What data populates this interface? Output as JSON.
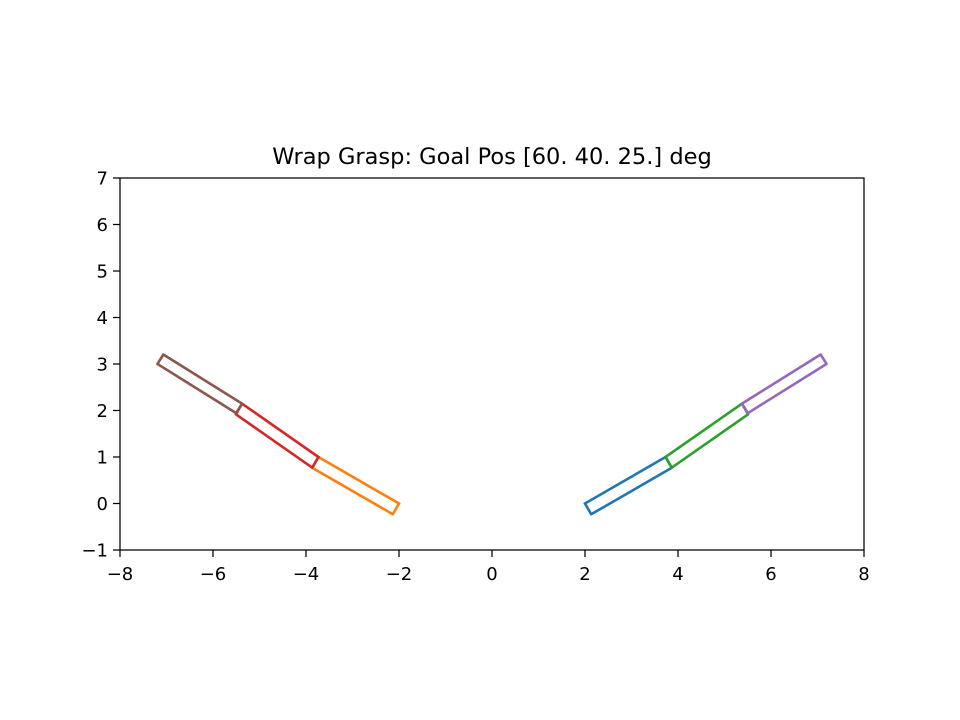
{
  "chart_data": {
    "type": "line",
    "title": "Wrap Grasp: Goal Pos [60. 40. 25.] deg",
    "xlabel": "",
    "ylabel": "",
    "xlim": [
      -8,
      8
    ],
    "ylim": [
      -1,
      7
    ],
    "xticks": [
      -8,
      -6,
      -4,
      -2,
      0,
      2,
      4,
      6,
      8
    ],
    "xtick_labels": [
      "−8",
      "−6",
      "−4",
      "−2",
      "0",
      "2",
      "4",
      "6",
      "8"
    ],
    "yticks": [
      -1,
      0,
      1,
      2,
      3,
      4,
      5,
      6,
      7
    ],
    "ytick_labels": [
      "−1",
      "0",
      "1",
      "2",
      "3",
      "4",
      "5",
      "6",
      "7"
    ],
    "grid": false,
    "series": [
      {
        "color": "#1f77b4",
        "x": [
          2.0,
          3.733,
          3.867,
          2.133,
          2.0
        ],
        "y": [
          0.0,
          1.0,
          0.768,
          -0.232,
          0.0
        ]
      },
      {
        "color": "#ff7f0e",
        "x": [
          -2.0,
          -3.733,
          -3.867,
          -2.133,
          -2.0
        ],
        "y": [
          0.0,
          1.0,
          0.768,
          -0.232,
          0.0
        ]
      },
      {
        "color": "#2ca02c",
        "x": [
          3.733,
          5.375,
          5.507,
          3.865,
          3.733
        ],
        "y": [
          1.0,
          2.147,
          1.918,
          0.771,
          1.0
        ]
      },
      {
        "color": "#d62728",
        "x": [
          -3.733,
          -5.375,
          -5.507,
          -3.865,
          -3.733
        ],
        "y": [
          1.0,
          2.147,
          1.918,
          0.771,
          1.0
        ]
      },
      {
        "color": "#9467bd",
        "x": [
          5.375,
          7.068,
          7.195,
          5.502,
          5.375
        ],
        "y": [
          2.147,
          3.204,
          3.001,
          1.944,
          2.147
        ]
      },
      {
        "color": "#8c564b",
        "x": [
          -5.375,
          -7.068,
          -7.195,
          -5.502,
          -5.375
        ],
        "y": [
          2.147,
          3.204,
          3.001,
          1.944,
          2.147
        ]
      }
    ]
  }
}
